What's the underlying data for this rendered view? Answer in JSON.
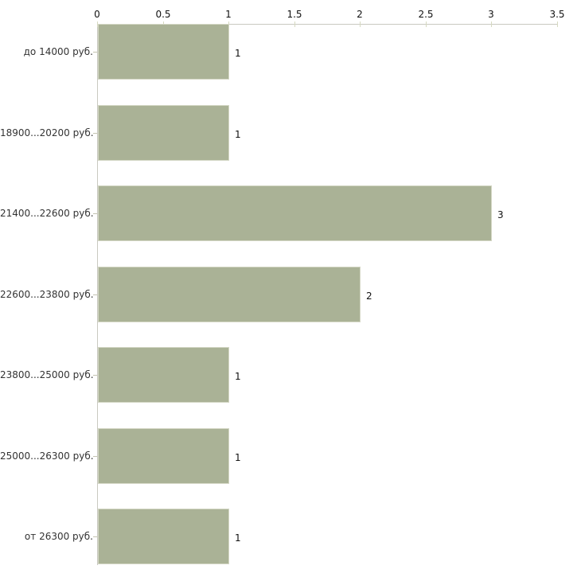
{
  "chart_data": {
    "type": "bar",
    "orientation": "horizontal",
    "title": "",
    "xlabel": "",
    "ylabel": "",
    "grid": false,
    "legend": null,
    "axis_position": "top",
    "categories": [
      "до 14000 руб.",
      "18900...20200 руб.",
      "21400...22600 руб.",
      "22600...23800 руб.",
      "23800...25000 руб.",
      "25000...26300 руб.",
      "от 26300 руб."
    ],
    "values": [
      1,
      1,
      3,
      2,
      1,
      1,
      1
    ],
    "value_labels": [
      "1",
      "1",
      "3",
      "2",
      "1",
      "1",
      "1"
    ],
    "x_ticks": [
      "0",
      "0.5",
      "1",
      "1.5",
      "2",
      "2.5",
      "3",
      "3.5"
    ],
    "x_tick_values": [
      0,
      0.5,
      1,
      1.5,
      2,
      2.5,
      3,
      3.5
    ],
    "xlim": [
      0,
      3.5
    ],
    "colors": {
      "background": "#ffffff",
      "bar_fill": "#aab296",
      "bar_border": "#d4d7c5",
      "axis_line": "#c9c9c1",
      "tick_mark": "#d6d9c1",
      "tick_label": "#111111",
      "category_label": "#333333",
      "category_tick": "#c4c4b2",
      "value_label": "#111111"
    }
  }
}
